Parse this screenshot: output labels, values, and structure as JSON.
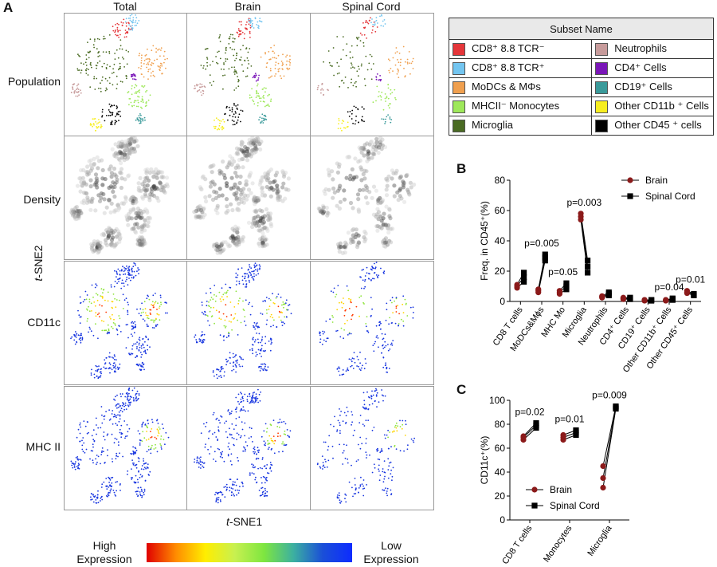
{
  "panel_letters": {
    "a": "A",
    "b": "B",
    "c": "C"
  },
  "tsne": {
    "columns": [
      "Total",
      "Brain",
      "Spinal Cord"
    ],
    "rows": [
      "Population",
      "Density",
      "CD11c",
      "MHC II"
    ],
    "x_axis": "SNE1",
    "y_axis": "SNE2",
    "axis_prefix": "t",
    "colorbar": {
      "high_line1": "High",
      "high_line2": "Expression",
      "low_line1": "Low",
      "low_line2": "Expression",
      "colors": [
        "#e00000",
        "#ff8c00",
        "#ffee00",
        "#c8f050",
        "#7ee640",
        "#3cb0a0",
        "#1a4fd8",
        "#0d2cff"
      ]
    }
  },
  "legend": {
    "header": "Subset Name",
    "items": [
      {
        "label": "CD8⁺ 8.8 TCR⁻",
        "color": "#e5363a"
      },
      {
        "label": "Neutrophils",
        "color": "#c79b9b"
      },
      {
        "label": "CD8⁺ 8.8 TCR⁺",
        "color": "#73c5f0"
      },
      {
        "label": "CD4⁺ Cells",
        "color": "#7a16b8"
      },
      {
        "label": "MoDCs & MΦs",
        "color": "#f0a04f"
      },
      {
        "label": "CD19⁺ Cells",
        "color": "#3a9a9a"
      },
      {
        "label": "MHCII⁻ Monocytes",
        "color": "#9ee85a"
      },
      {
        "label": "Other CD11b ⁺ Cells",
        "color": "#f7ee20"
      },
      {
        "label": "Microglia",
        "color": "#4a6b23"
      },
      {
        "label": "Other CD45 ⁺ cells",
        "color": "#000000"
      }
    ]
  },
  "chart_data": [
    {
      "type": "scatter",
      "panel": "B",
      "ylabel": "Freq. in CD45⁺(%)",
      "ylim": [
        0,
        80
      ],
      "yticks": [
        0,
        20,
        40,
        60,
        80
      ],
      "categories": [
        "CD8 T cells",
        "MoDCs&Mϕs",
        "MHC Mo",
        "Microglia",
        "Neutrophils",
        "CD4⁺ Cells",
        "CD19⁺ Cells",
        "Other CD11b⁺ Cells",
        "Other CD45⁺ Cells"
      ],
      "series": [
        {
          "name": "Brain",
          "marker": "circle",
          "color": "#8b1a1a",
          "values": [
            [
              9,
              10,
              11
            ],
            [
              6,
              7,
              8
            ],
            [
              5,
              6,
              7
            ],
            [
              54,
              56,
              58
            ],
            [
              2.5,
              3,
              3.5
            ],
            [
              1.5,
              2,
              2.5
            ],
            [
              0.5,
              1,
              1
            ],
            [
              0.5,
              1,
              1
            ],
            [
              5.5,
              6,
              7
            ]
          ]
        },
        {
          "name": "Spinal Cord",
          "marker": "square",
          "color": "#000000",
          "values": [
            [
              13,
              16,
              19
            ],
            [
              27,
              29,
              31
            ],
            [
              8,
              10,
              12
            ],
            [
              19,
              23,
              27
            ],
            [
              4,
              5,
              6
            ],
            [
              1.5,
              2,
              2.5
            ],
            [
              0.5,
              1,
              1
            ],
            [
              1,
              1.5,
              2
            ],
            [
              4,
              4.5,
              5
            ]
          ]
        }
      ],
      "annotations": [
        {
          "category": "MoDCs&Mϕs",
          "text": "p=0.005"
        },
        {
          "category": "MHC Mo",
          "text": "p=0.05"
        },
        {
          "category": "Microglia",
          "text": "p=0.003"
        },
        {
          "category": "Other CD11b⁺ Cells",
          "text": "p=0.04"
        },
        {
          "category": "Other CD45⁺ Cells",
          "text": "p=0.01"
        }
      ],
      "legend_position": "top-right"
    },
    {
      "type": "scatter",
      "panel": "C",
      "ylabel": "CD11c⁺(%)",
      "ylim": [
        0,
        100
      ],
      "yticks": [
        0,
        20,
        40,
        60,
        80,
        100
      ],
      "categories": [
        "CD8 T cells",
        "Monocytes",
        "Microglia"
      ],
      "series": [
        {
          "name": "Brain",
          "marker": "circle",
          "color": "#8b1a1a",
          "values": [
            [
              67,
              69,
              70
            ],
            [
              67,
              69,
              71
            ],
            [
              27,
              35,
              45
            ]
          ]
        },
        {
          "name": "Spinal Cord",
          "marker": "square",
          "color": "#000000",
          "values": [
            [
              77,
              79,
              81
            ],
            [
              71,
              73,
              75
            ],
            [
              93,
              94,
              95
            ]
          ]
        }
      ],
      "annotations": [
        {
          "category": "CD8 T cells",
          "text": "p=0.02"
        },
        {
          "category": "Monocytes",
          "text": "p=0.01"
        },
        {
          "category": "Microglia",
          "text": "p=0.009"
        }
      ],
      "legend_position": "bottom-left"
    }
  ]
}
